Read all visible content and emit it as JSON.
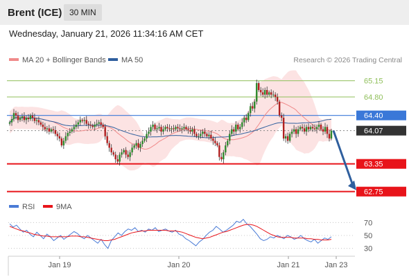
{
  "header": {
    "instrument": "Brent (ICE)",
    "timeframe": "30 MIN"
  },
  "datetime": "Wednesday, January 21, 2026 11:34:16 AM CET",
  "copyright": "Research © 2026 Trading Central",
  "colors": {
    "resistance": "#8fbf5a",
    "support": "#e8141a",
    "pivot": "#3a78d8",
    "current": "#333333",
    "bollinger": "#f08a8a",
    "ma50": "#2f5f9e",
    "candle_up": "#2d8a2d",
    "candle_down": "#b02020",
    "rsi": "#4a7bd6",
    "rsi_ma": "#e8141a",
    "arrow": "#2f5f9e"
  },
  "chart_data": [
    {
      "type": "candlestick",
      "legend": [
        {
          "name": "MA 20 + Bollinger Bands",
          "color": "#f08a8a"
        },
        {
          "name": "MA 50",
          "color": "#2f5f9e"
        }
      ],
      "x_tick_labels": [
        "Jan 19",
        "Jan 20",
        "Jan 21",
        "Jan 23"
      ],
      "levels": [
        {
          "value": 65.15,
          "label": "65.15",
          "kind": "resistance"
        },
        {
          "value": 64.8,
          "label": "64.80",
          "kind": "resistance"
        },
        {
          "value": 64.4,
          "label": "64.40",
          "kind": "pivot"
        },
        {
          "value": 64.07,
          "label": "64.07",
          "kind": "current"
        },
        {
          "value": 63.35,
          "label": "63.35",
          "kind": "support"
        },
        {
          "value": 62.75,
          "label": "62.75",
          "kind": "support"
        }
      ],
      "ylim": [
        62.7,
        65.4
      ],
      "forecast": {
        "from": 64.07,
        "to": 62.75,
        "direction": "down"
      },
      "close": [
        64.25,
        64.32,
        64.45,
        64.4,
        64.3,
        64.35,
        64.38,
        64.3,
        64.35,
        64.32,
        64.4,
        64.35,
        64.28,
        64.3,
        64.25,
        64.2,
        64.15,
        64.1,
        64.12,
        64.05,
        64.1,
        64.08,
        64.0,
        63.95,
        63.9,
        63.75,
        63.85,
        63.95,
        64.02,
        64.05,
        64.1,
        64.15,
        64.2,
        64.25,
        64.3,
        64.28,
        64.3,
        64.22,
        64.2,
        64.18,
        64.15,
        64.2,
        64.22,
        64.25,
        64.2,
        64.15,
        63.95,
        63.8,
        63.7,
        63.6,
        63.55,
        63.45,
        63.4,
        63.55,
        63.6,
        63.65,
        63.55,
        63.5,
        63.6,
        63.7,
        63.75,
        63.8,
        63.7,
        63.78,
        63.85,
        63.9,
        64.0,
        64.05,
        64.15,
        64.2,
        64.1,
        64.12,
        64.15,
        64.05,
        64.1,
        64.15,
        64.12,
        64.1,
        64.12,
        64.1,
        64.15,
        64.12,
        64.1,
        64.12,
        64.15,
        64.1,
        64.08,
        64.05,
        64.1,
        64.0,
        63.95,
        63.95,
        64.0,
        64.05,
        64.0,
        63.95,
        63.98,
        63.9,
        63.85,
        63.8,
        63.75,
        63.5,
        63.45,
        63.6,
        63.75,
        63.85,
        64.0,
        64.1,
        64.05,
        64.2,
        64.1,
        64.15,
        64.25,
        64.35,
        64.3,
        64.45,
        64.6,
        64.55,
        64.7,
        65.1,
        64.95,
        64.9,
        64.85,
        64.95,
        64.85,
        64.9,
        64.85,
        64.85,
        64.8,
        64.7,
        64.4,
        64.35,
        63.9,
        63.95,
        63.85,
        64.0,
        64.05,
        64.1,
        64.0,
        64.1,
        64.15,
        64.12,
        64.05,
        64.15,
        64.1,
        64.15,
        64.12,
        64.1,
        64.15,
        64.2,
        64.1,
        64.05,
        64.15,
        64.0,
        63.9,
        64.07
      ]
    },
    {
      "type": "line",
      "legend": [
        {
          "name": "RSI",
          "color": "#4a7bd6"
        },
        {
          "name": "9MA",
          "color": "#e8141a"
        }
      ],
      "y_tick_labels": [
        "70",
        "50",
        "30"
      ],
      "ylim": [
        20,
        80
      ],
      "series": [
        {
          "name": "RSI",
          "values": [
            68,
            63,
            66,
            60,
            55,
            58,
            52,
            48,
            55,
            50,
            45,
            52,
            48,
            42,
            46,
            50,
            44,
            48,
            52,
            56,
            53,
            48,
            45,
            50,
            46,
            42,
            38,
            44,
            36,
            30,
            42,
            48,
            54,
            50,
            56,
            60,
            58,
            62,
            56,
            58,
            55,
            60,
            58,
            62,
            56,
            58,
            60,
            57,
            55,
            58,
            52,
            50,
            45,
            42,
            38,
            34,
            40,
            44,
            50,
            55,
            58,
            64,
            60,
            55,
            58,
            62,
            66,
            72,
            70,
            75,
            68,
            64,
            58,
            52,
            45,
            42,
            44,
            48,
            46,
            50,
            48,
            45,
            50,
            48,
            44,
            46,
            50,
            45,
            42,
            40,
            44,
            38,
            42,
            46,
            44,
            48
          ]
        },
        {
          "name": "9MA",
          "values": [
            64,
            62,
            60,
            58,
            57,
            55,
            54,
            52,
            51,
            50,
            49,
            49,
            48,
            48,
            48,
            48,
            48,
            48,
            49,
            49,
            49,
            48,
            48,
            47,
            46,
            45,
            44,
            43,
            42,
            42,
            43,
            44,
            46,
            48,
            50,
            52,
            54,
            55,
            56,
            57,
            57,
            58,
            58,
            58,
            58,
            58,
            58,
            57,
            57,
            57,
            56,
            55,
            53,
            51,
            49,
            47,
            46,
            45,
            46,
            47,
            49,
            51,
            53,
            55,
            56,
            58,
            60,
            62,
            64,
            66,
            67,
            67,
            66,
            64,
            61,
            58,
            55,
            52,
            50,
            48,
            47,
            47,
            47,
            47,
            46,
            46,
            46,
            46,
            45,
            45,
            44,
            44,
            43,
            43,
            43,
            44
          ]
        }
      ]
    }
  ]
}
